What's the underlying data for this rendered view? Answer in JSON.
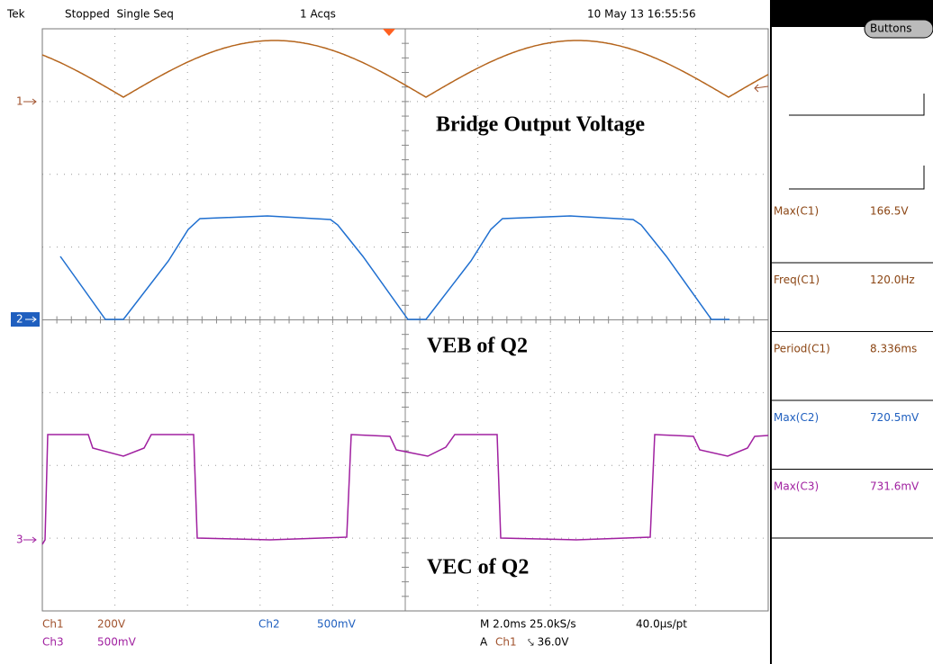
{
  "header": {
    "brand": "Tek",
    "status": "Stopped  Single Seq",
    "acqs": "1 Acqs",
    "datetime": "10 May 13 16:55:56"
  },
  "side_panel": {
    "button": "Buttons",
    "measurements": [
      {
        "name": "Max(C1)",
        "value": "166.5V"
      },
      {
        "name": "Freq(C1)",
        "value": "120.0Hz"
      },
      {
        "name": "Period(C1)",
        "value": "8.336ms"
      },
      {
        "name": "Max(C2)",
        "value": "720.5mV"
      },
      {
        "name": "Max(C3)",
        "value": "731.6mV"
      }
    ]
  },
  "markers": [
    "1",
    "2",
    "3"
  ],
  "annotations": [
    "Bridge Output Voltage",
    "VEB of Q2",
    "VEC of Q2"
  ],
  "footer": {
    "ch1": "Ch1",
    "ch1_scale": "200V",
    "ch2": "Ch2",
    "ch2_scale": "500mV",
    "ch3": "Ch3",
    "ch3_scale": "500mV",
    "timebase": "M 2.0ms 25.0kS/s",
    "record": "40.0µs/pt",
    "trigger_prefix": "A",
    "trigger_source": "Ch1",
    "trigger_level": "⤥ 36.0V"
  }
}
